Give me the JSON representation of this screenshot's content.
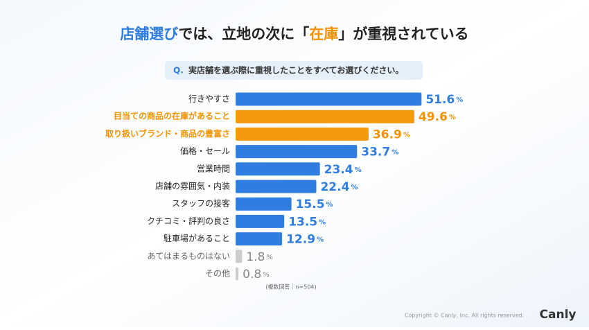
{
  "chart_data": {
    "type": "hbar",
    "title_parts": [
      "店舗選び",
      "では、立地の次に「",
      "在庫",
      "」が重視されている"
    ],
    "title_colors": [
      "#2f7de1",
      "#222222",
      "#f39200",
      "#222222"
    ],
    "question_prefix": "Q.",
    "question": "実店舗を選ぶ際に重視したことをすべてお選びください。",
    "categories": [
      "行きやすさ",
      "目当ての商品の在庫があること",
      "取り扱いブランド・商品の豊富さ",
      "価格・セール",
      "営業時間",
      "店舗の雰囲気・内装",
      "スタッフの接客",
      "クチコミ・評判の良さ",
      "駐車場があること",
      "あてはまるものはない",
      "その他"
    ],
    "values": [
      51.6,
      49.6,
      36.9,
      33.7,
      23.4,
      22.4,
      15.5,
      13.5,
      12.9,
      1.8,
      0.8
    ],
    "value_labels": [
      "51.6%",
      "49.6%",
      "36.9%",
      "33.7%",
      "23.4%",
      "22.4%",
      "15.5%",
      "13.5%",
      "12.9%",
      "1.8%",
      "0.8%"
    ],
    "colors": [
      "#2f7de1",
      "#f39200",
      "#f39200",
      "#2f7de1",
      "#2f7de1",
      "#2f7de1",
      "#2f7de1",
      "#2f7de1",
      "#2f7de1",
      "#cccccc",
      "#cccccc"
    ],
    "note": "(複数回答｜n=504)",
    "copyright": "Copyright © Canly, Inc. All rights reserved.",
    "logo": "Canly"
  }
}
